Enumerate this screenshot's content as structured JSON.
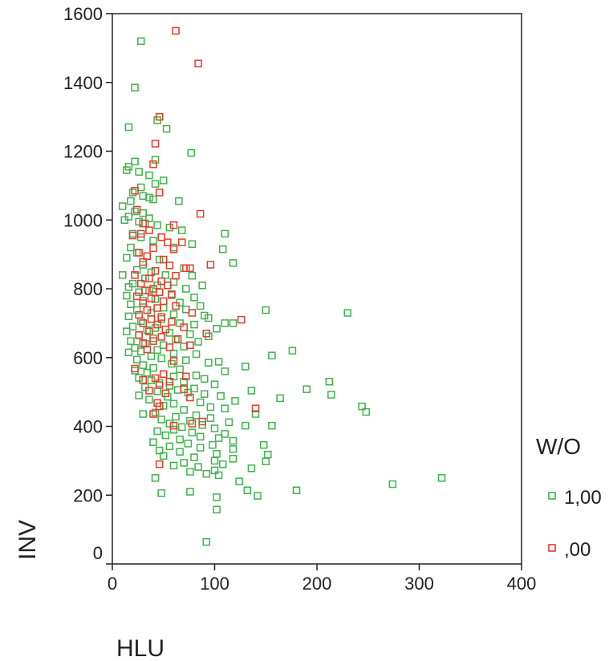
{
  "chart_data": {
    "type": "scatter",
    "xlabel": "HLU",
    "ylabel": "INV",
    "xlim": [
      0,
      400
    ],
    "ylim": [
      0,
      1600
    ],
    "xticks": [
      0,
      100,
      200,
      300,
      400
    ],
    "yticks": [
      0,
      200,
      400,
      600,
      800,
      1000,
      1200,
      1400,
      1600
    ],
    "grid": false,
    "legend": {
      "title": "W/O",
      "placement": "right"
    },
    "marker": "hollow-square",
    "series": [
      {
        "name": "1,00",
        "color": "#3cb44b",
        "points": [
          [
            28,
            1520
          ],
          [
            22,
            1385
          ],
          [
            16,
            1270
          ],
          [
            44,
            1290
          ],
          [
            53,
            1265
          ],
          [
            77,
            1195
          ],
          [
            42,
            1175
          ],
          [
            22,
            1170
          ],
          [
            16,
            1155
          ],
          [
            14,
            1145
          ],
          [
            26,
            1140
          ],
          [
            36,
            1130
          ],
          [
            50,
            1115
          ],
          [
            42,
            1105
          ],
          [
            28,
            1095
          ],
          [
            20,
            1080
          ],
          [
            30,
            1070
          ],
          [
            36,
            1065
          ],
          [
            40,
            1060
          ],
          [
            18,
            1055
          ],
          [
            65,
            1055
          ],
          [
            10,
            1040
          ],
          [
            22,
            1025
          ],
          [
            30,
            1020
          ],
          [
            16,
            1010
          ],
          [
            36,
            1005
          ],
          [
            12,
            1000
          ],
          [
            26,
            995
          ],
          [
            32,
            990
          ],
          [
            44,
            985
          ],
          [
            56,
            978
          ],
          [
            68,
            970
          ],
          [
            20,
            960
          ],
          [
            110,
            960
          ],
          [
            28,
            950
          ],
          [
            40,
            940
          ],
          [
            78,
            930
          ],
          [
            18,
            920
          ],
          [
            60,
            920
          ],
          [
            108,
            915
          ],
          [
            24,
            905
          ],
          [
            34,
            895
          ],
          [
            14,
            890
          ],
          [
            46,
            885
          ],
          [
            118,
            875
          ],
          [
            30,
            870
          ],
          [
            70,
            860
          ],
          [
            24,
            855
          ],
          [
            38,
            848
          ],
          [
            52,
            840
          ],
          [
            10,
            840
          ],
          [
            78,
            838
          ],
          [
            32,
            830
          ],
          [
            60,
            820
          ],
          [
            20,
            815
          ],
          [
            44,
            810
          ],
          [
            88,
            810
          ],
          [
            16,
            805
          ],
          [
            72,
            800
          ],
          [
            36,
            795
          ],
          [
            26,
            790
          ],
          [
            58,
            785
          ],
          [
            14,
            780
          ],
          [
            80,
            775
          ],
          [
            42,
            770
          ],
          [
            30,
            765
          ],
          [
            66,
            760
          ],
          [
            18,
            755
          ],
          [
            86,
            750
          ],
          [
            50,
            745
          ],
          [
            72,
            740
          ],
          [
            24,
            738
          ],
          [
            150,
            738
          ],
          [
            230,
            730
          ],
          [
            38,
            730
          ],
          [
            60,
            726
          ],
          [
            90,
            722
          ],
          [
            94,
            715
          ],
          [
            16,
            720
          ],
          [
            48,
            712
          ],
          [
            28,
            706
          ],
          [
            66,
            700
          ],
          [
            80,
            696
          ],
          [
            110,
            700
          ],
          [
            118,
            700
          ],
          [
            20,
            690
          ],
          [
            42,
            686
          ],
          [
            102,
            684
          ],
          [
            34,
            680
          ],
          [
            14,
            676
          ],
          [
            56,
            672
          ],
          [
            76,
            668
          ],
          [
            26,
            665
          ],
          [
            94,
            662
          ],
          [
            40,
            656
          ],
          [
            62,
            652
          ],
          [
            18,
            648
          ],
          [
            84,
            646
          ],
          [
            32,
            640
          ],
          [
            50,
            636
          ],
          [
            70,
            632
          ],
          [
            22,
            628
          ],
          [
            176,
            620
          ],
          [
            44,
            622
          ],
          [
            28,
            618
          ],
          [
            16,
            615
          ],
          [
            60,
            612
          ],
          [
            82,
            610
          ],
          [
            156,
            606
          ],
          [
            38,
            604
          ],
          [
            48,
            598
          ],
          [
            24,
            594
          ],
          [
            72,
            592
          ],
          [
            104,
            588
          ],
          [
            94,
            585
          ],
          [
            58,
            582
          ],
          [
            30,
            578
          ],
          [
            130,
            574
          ],
          [
            40,
            570
          ],
          [
            66,
            566
          ],
          [
            22,
            562
          ],
          [
            110,
            560
          ],
          [
            34,
            556
          ],
          [
            50,
            552
          ],
          [
            82,
            548
          ],
          [
            60,
            545
          ],
          [
            26,
            541
          ],
          [
            90,
            538
          ],
          [
            212,
            530
          ],
          [
            38,
            534
          ],
          [
            70,
            530
          ],
          [
            46,
            526
          ],
          [
            100,
            522
          ],
          [
            56,
            518
          ],
          [
            32,
            514
          ],
          [
            136,
            504
          ],
          [
            190,
            508
          ],
          [
            80,
            510
          ],
          [
            64,
            506
          ],
          [
            44,
            502
          ],
          [
            74,
            498
          ],
          [
            90,
            494
          ],
          [
            214,
            492
          ],
          [
            26,
            490
          ],
          [
            106,
            488
          ],
          [
            164,
            482
          ],
          [
            54,
            486
          ],
          [
            36,
            478
          ],
          [
            120,
            474
          ],
          [
            86,
            470
          ],
          [
            60,
            466
          ],
          [
            50,
            460
          ],
          [
            96,
            456
          ],
          [
            244,
            458
          ],
          [
            110,
            452
          ],
          [
            70,
            448
          ],
          [
            248,
            442
          ],
          [
            42,
            440
          ],
          [
            30,
            436
          ],
          [
            140,
            436
          ],
          [
            82,
            432
          ],
          [
            62,
            428
          ],
          [
            96,
            424
          ],
          [
            48,
            420
          ],
          [
            76,
            416
          ],
          [
            114,
            412
          ],
          [
            56,
            408
          ],
          [
            88,
            404
          ],
          [
            156,
            402
          ],
          [
            130,
            402
          ],
          [
            68,
            398
          ],
          [
            100,
            394
          ],
          [
            60,
            390
          ],
          [
            44,
            386
          ],
          [
            78,
            382
          ],
          [
            110,
            378
          ],
          [
            52,
            374
          ],
          [
            86,
            370
          ],
          [
            104,
            366
          ],
          [
            66,
            362
          ],
          [
            118,
            358
          ],
          [
            40,
            354
          ],
          [
            74,
            350
          ],
          [
            98,
            346
          ],
          [
            148,
            346
          ],
          [
            56,
            342
          ],
          [
            86,
            338
          ],
          [
            118,
            334
          ],
          [
            46,
            330
          ],
          [
            66,
            326
          ],
          [
            102,
            320
          ],
          [
            152,
            318
          ],
          [
            50,
            314
          ],
          [
            80,
            310
          ],
          [
            118,
            306
          ],
          [
            100,
            300
          ],
          [
            150,
            298
          ],
          [
            70,
            294
          ],
          [
            108,
            290
          ],
          [
            60,
            286
          ],
          [
            84,
            282
          ],
          [
            136,
            278
          ],
          [
            100,
            272
          ],
          [
            76,
            268
          ],
          [
            92,
            262
          ],
          [
            104,
            258
          ],
          [
            124,
            240
          ],
          [
            42,
            250
          ],
          [
            274,
            232
          ],
          [
            322,
            250
          ],
          [
            180,
            214
          ],
          [
            132,
            214
          ],
          [
            48,
            206
          ],
          [
            76,
            210
          ],
          [
            102,
            194
          ],
          [
            142,
            198
          ],
          [
            102,
            158
          ],
          [
            92,
            64
          ]
        ]
      },
      {
        "name": ",00",
        "color": "#e8392b",
        "points": [
          [
            62,
            1550
          ],
          [
            84,
            1455
          ],
          [
            46,
            1300
          ],
          [
            42,
            1222
          ],
          [
            40,
            1162
          ],
          [
            22,
            1085
          ],
          [
            46,
            1080
          ],
          [
            86,
            1018
          ],
          [
            24,
            1030
          ],
          [
            30,
            990
          ],
          [
            60,
            985
          ],
          [
            36,
            970
          ],
          [
            28,
            960
          ],
          [
            20,
            955
          ],
          [
            48,
            950
          ],
          [
            54,
            935
          ],
          [
            68,
            935
          ],
          [
            40,
            918
          ],
          [
            60,
            915
          ],
          [
            26,
            905
          ],
          [
            34,
            895
          ],
          [
            50,
            885
          ],
          [
            96,
            870
          ],
          [
            30,
            878
          ],
          [
            56,
            868
          ],
          [
            72,
            860
          ],
          [
            76,
            860
          ],
          [
            42,
            852
          ],
          [
            22,
            840
          ],
          [
            62,
            838
          ],
          [
            36,
            830
          ],
          [
            48,
            822
          ],
          [
            28,
            815
          ],
          [
            54,
            810
          ],
          [
            40,
            800
          ],
          [
            32,
            795
          ],
          [
            46,
            790
          ],
          [
            58,
            782
          ],
          [
            24,
            778
          ],
          [
            38,
            772
          ],
          [
            50,
            764
          ],
          [
            30,
            758
          ],
          [
            62,
            750
          ],
          [
            44,
            744
          ],
          [
            34,
            738
          ],
          [
            78,
            730
          ],
          [
            26,
            724
          ],
          [
            48,
            718
          ],
          [
            38,
            712
          ],
          [
            126,
            710
          ],
          [
            58,
            704
          ],
          [
            30,
            700
          ],
          [
            44,
            696
          ],
          [
            70,
            688
          ],
          [
            52,
            682
          ],
          [
            36,
            676
          ],
          [
            92,
            670
          ],
          [
            26,
            666
          ],
          [
            48,
            660
          ],
          [
            64,
            654
          ],
          [
            40,
            648
          ],
          [
            30,
            642
          ],
          [
            76,
            636
          ],
          [
            56,
            630
          ],
          [
            34,
            624
          ],
          [
            60,
            590
          ],
          [
            22,
            568
          ],
          [
            50,
            552
          ],
          [
            72,
            545
          ],
          [
            42,
            540
          ],
          [
            30,
            535
          ],
          [
            56,
            530
          ],
          [
            46,
            520
          ],
          [
            70,
            508
          ],
          [
            36,
            504
          ],
          [
            52,
            496
          ],
          [
            76,
            484
          ],
          [
            44,
            468
          ],
          [
            46,
            458
          ],
          [
            140,
            452
          ],
          [
            88,
            414
          ],
          [
            78,
            408
          ],
          [
            60,
            402
          ],
          [
            40,
            436
          ],
          [
            46,
            290
          ]
        ]
      }
    ]
  }
}
